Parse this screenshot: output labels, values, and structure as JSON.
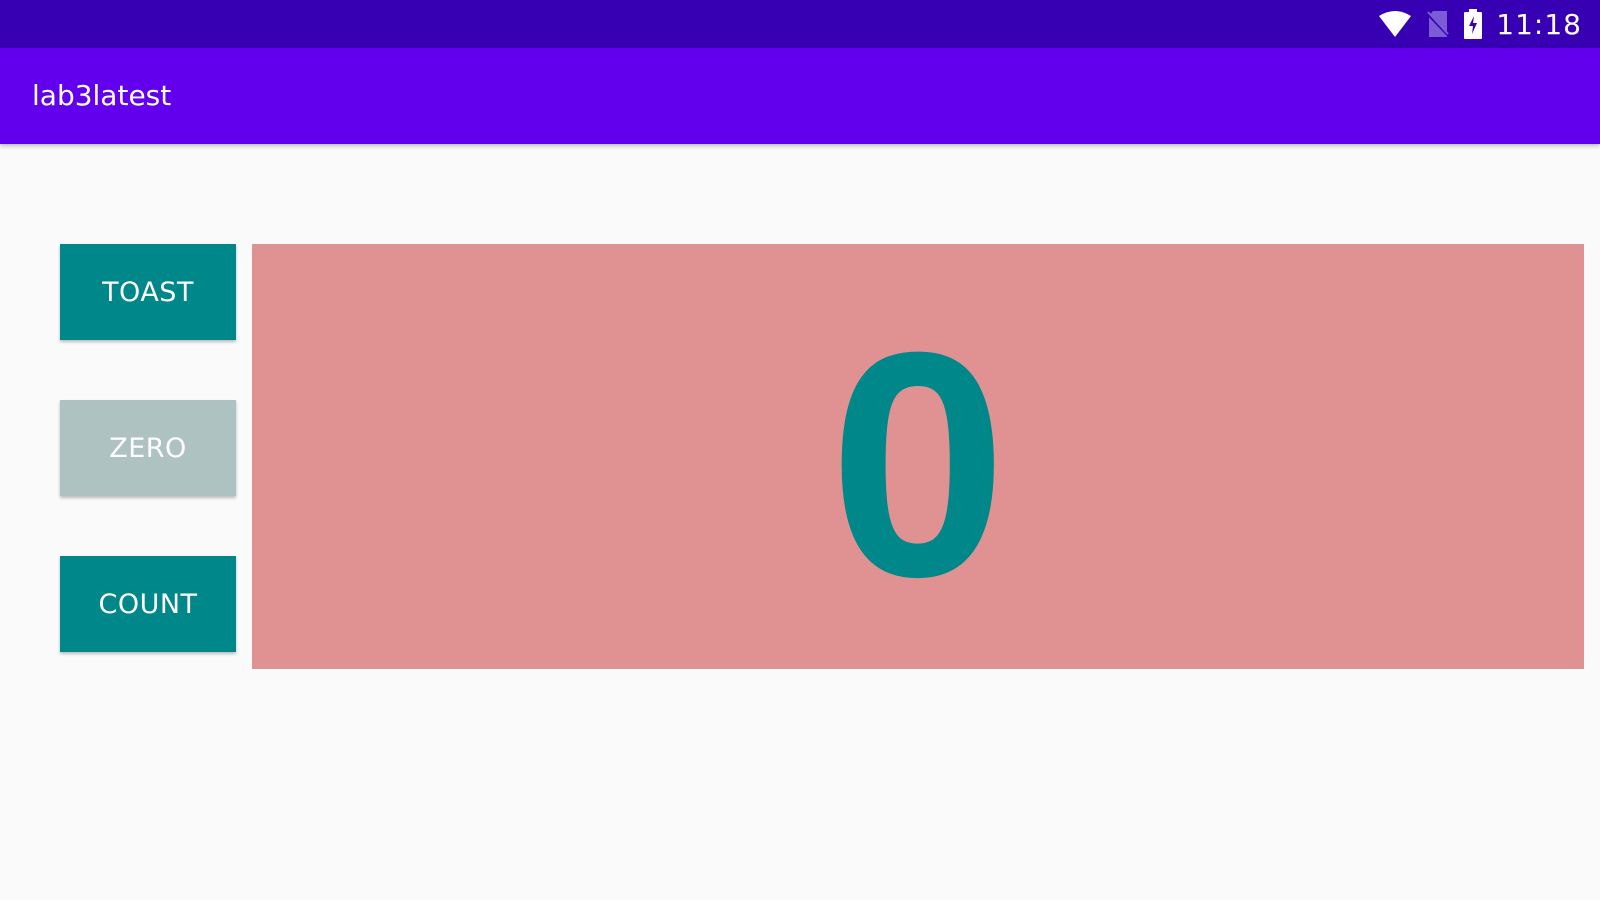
{
  "status_bar": {
    "time": "11:18",
    "icons": [
      "wifi-icon",
      "no-sim-icon",
      "battery-charging-icon"
    ],
    "color": "#3700b3"
  },
  "app_bar": {
    "title": "lab3latest",
    "color": "#6200ee"
  },
  "buttons": {
    "toast_label": "TOAST",
    "zero_label": "ZERO",
    "count_label": "COUNT"
  },
  "counter": {
    "value": "0",
    "panel_color": "#e09292",
    "text_color": "#00878a"
  }
}
